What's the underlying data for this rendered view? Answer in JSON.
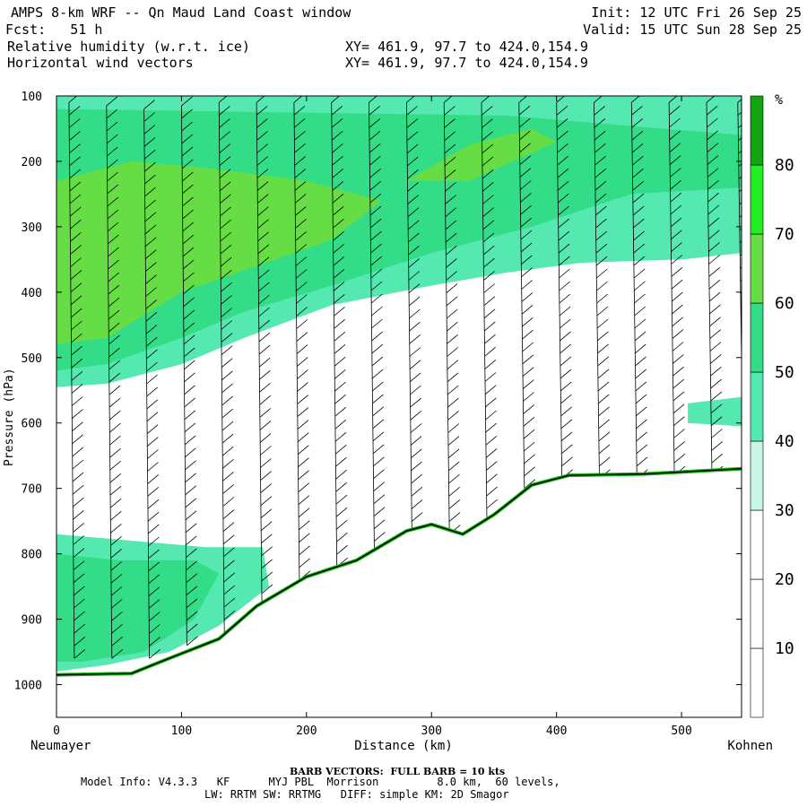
{
  "header": {
    "title": "AMPS 8-km WRF -- Qn Maud Land Coast window",
    "forecast": "Fcst:   51 h",
    "init": "Init: 12 UTC Fri 26 Sep 25",
    "valid": "Valid: 15 UTC Sun 28 Sep 25",
    "field1": "Relative humidity (w.r.t. ice)",
    "field2": "Horizontal wind vectors",
    "xy1": "XY= 461.9, 97.7 to 424.0,154.9",
    "xy2": "XY= 461.9, 97.7 to 424.0,154.9"
  },
  "footer": {
    "barb": "BARB VECTORS:  FULL BARB = 10 kts",
    "model_line1": "Model Info: V4.3.3   KF      MYJ PBL  Morrison         8.0 km,  60 levels,",
    "model_line2": "LW: RRTM SW: RRTMG   DIFF: simple KM: 2D Smagor"
  },
  "chart_data": {
    "type": "cross-section",
    "title": "Relative humidity (w.r.t. ice) and horizontal wind vectors",
    "xlabel": "Distance (km)",
    "ylabel": "Pressure (hPa)",
    "x_start_label": "Neumayer",
    "x_end_label": "Kohnen",
    "xlim": [
      0,
      548
    ],
    "ylim": [
      100,
      1050
    ],
    "x_ticks": [
      0,
      100,
      200,
      300,
      400,
      500
    ],
    "y_ticks": [
      100,
      200,
      300,
      400,
      500,
      600,
      700,
      800,
      900,
      1000
    ],
    "colorbar": {
      "unit": "%",
      "levels": [
        10,
        20,
        30,
        40,
        50,
        60,
        70,
        80
      ],
      "colors": [
        "#ffffff",
        "#ffffff",
        "#ffffff",
        "#c8f7e6",
        "#55e8b0",
        "#33dd88",
        "#66dd44",
        "#22ee22",
        "#11a611"
      ]
    },
    "terrain": [
      {
        "x": 0,
        "p": 985
      },
      {
        "x": 60,
        "p": 983
      },
      {
        "x": 90,
        "p": 960
      },
      {
        "x": 130,
        "p": 930
      },
      {
        "x": 160,
        "p": 880
      },
      {
        "x": 200,
        "p": 835
      },
      {
        "x": 240,
        "p": 810
      },
      {
        "x": 280,
        "p": 765
      },
      {
        "x": 300,
        "p": 755
      },
      {
        "x": 325,
        "p": 770
      },
      {
        "x": 350,
        "p": 740
      },
      {
        "x": 380,
        "p": 695
      },
      {
        "x": 410,
        "p": 680
      },
      {
        "x": 470,
        "p": 678
      },
      {
        "x": 548,
        "p": 670
      }
    ],
    "rh_regions": [
      {
        "level": 40,
        "points": [
          [
            0,
            100
          ],
          [
            548,
            100
          ],
          [
            548,
            340
          ],
          [
            500,
            350
          ],
          [
            420,
            355
          ],
          [
            360,
            370
          ],
          [
            300,
            390
          ],
          [
            220,
            420
          ],
          [
            150,
            470
          ],
          [
            100,
            510
          ],
          [
            40,
            540
          ],
          [
            0,
            545
          ]
        ]
      },
      {
        "level": 50,
        "points": [
          [
            0,
            120
          ],
          [
            360,
            130
          ],
          [
            548,
            160
          ],
          [
            548,
            240
          ],
          [
            460,
            250
          ],
          [
            380,
            300
          ],
          [
            300,
            340
          ],
          [
            220,
            390
          ],
          [
            150,
            430
          ],
          [
            100,
            470
          ],
          [
            40,
            510
          ],
          [
            0,
            520
          ]
        ]
      },
      {
        "level": 60,
        "points": [
          [
            0,
            230
          ],
          [
            60,
            200
          ],
          [
            120,
            210
          ],
          [
            200,
            230
          ],
          [
            260,
            260
          ],
          [
            220,
            320
          ],
          [
            160,
            360
          ],
          [
            100,
            400
          ],
          [
            40,
            470
          ],
          [
            0,
            480
          ]
        ]
      },
      {
        "level": 60,
        "points": [
          [
            280,
            230
          ],
          [
            330,
            175
          ],
          [
            380,
            150
          ],
          [
            400,
            170
          ],
          [
            330,
            230
          ]
        ]
      },
      {
        "level": 40,
        "points": [
          [
            0,
            770
          ],
          [
            60,
            780
          ],
          [
            120,
            790
          ],
          [
            165,
            790
          ],
          [
            170,
            850
          ],
          [
            130,
            910
          ],
          [
            90,
            950
          ],
          [
            40,
            970
          ],
          [
            0,
            980
          ]
        ]
      },
      {
        "level": 50,
        "points": [
          [
            0,
            800
          ],
          [
            50,
            810
          ],
          [
            110,
            810
          ],
          [
            130,
            830
          ],
          [
            110,
            900
          ],
          [
            70,
            950
          ],
          [
            20,
            965
          ],
          [
            0,
            965
          ]
        ]
      },
      {
        "level": 40,
        "points": [
          [
            505,
            570
          ],
          [
            548,
            560
          ],
          [
            548,
            605
          ],
          [
            505,
            600
          ]
        ]
      }
    ],
    "wind_columns": [
      {
        "x": 10,
        "p_top": 110,
        "p_bottom": 960
      },
      {
        "x": 40,
        "p_top": 115,
        "p_bottom": 960
      },
      {
        "x": 70,
        "p_top": 120,
        "p_bottom": 960
      },
      {
        "x": 100,
        "p_top": 115,
        "p_bottom": 940
      },
      {
        "x": 130,
        "p_top": 110,
        "p_bottom": 920
      },
      {
        "x": 160,
        "p_top": 110,
        "p_bottom": 880
      },
      {
        "x": 190,
        "p_top": 110,
        "p_bottom": 840
      },
      {
        "x": 220,
        "p_top": 110,
        "p_bottom": 820
      },
      {
        "x": 250,
        "p_top": 110,
        "p_bottom": 800
      },
      {
        "x": 280,
        "p_top": 110,
        "p_bottom": 770
      },
      {
        "x": 310,
        "p_top": 110,
        "p_bottom": 770
      },
      {
        "x": 340,
        "p_top": 110,
        "p_bottom": 750
      },
      {
        "x": 370,
        "p_top": 110,
        "p_bottom": 700
      },
      {
        "x": 400,
        "p_top": 110,
        "p_bottom": 685
      },
      {
        "x": 430,
        "p_top": 110,
        "p_bottom": 685
      },
      {
        "x": 460,
        "p_top": 110,
        "p_bottom": 685
      },
      {
        "x": 490,
        "p_top": 110,
        "p_bottom": 680
      },
      {
        "x": 520,
        "p_top": 110,
        "p_bottom": 680
      },
      {
        "x": 545,
        "p_top": 110,
        "p_bottom": 675
      }
    ]
  }
}
